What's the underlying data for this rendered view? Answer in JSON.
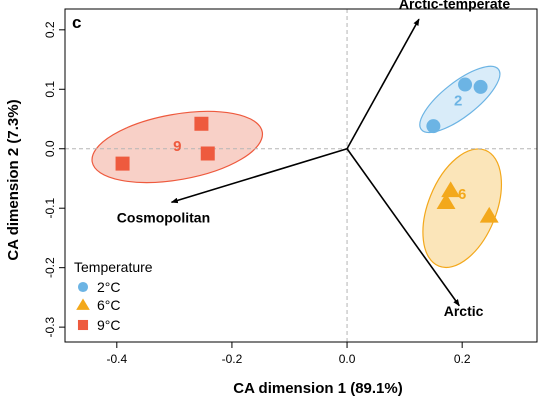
{
  "chart_data": {
    "type": "scatter",
    "panel_label": "c",
    "xlabel": "CA dimension 1 (89.1%)",
    "ylabel": "CA dimension 2 (7.3%)",
    "xlim": [
      -0.49,
      0.33
    ],
    "ylim": [
      -0.325,
      0.235
    ],
    "x_ticks": [
      -0.4,
      -0.2,
      0.0,
      0.2
    ],
    "x_tick_labels": [
      "-0.4",
      "-0.2",
      "0.0",
      "0.2"
    ],
    "y_ticks": [
      -0.3,
      -0.2,
      -0.1,
      0.0,
      0.1,
      0.2
    ],
    "y_tick_labels": [
      "-0.3",
      "-0.2",
      "-0.1",
      "0.0",
      "0.1",
      "0.2"
    ],
    "reference_lines": {
      "x": 0,
      "y": 0,
      "style": "dashed"
    },
    "series": [
      {
        "name": "2°C",
        "label": "2",
        "marker": "circle",
        "color": "#6CB4E4",
        "ellipse_fill": "#D9ECF9",
        "points": [
          {
            "x": 0.15,
            "y": 0.038
          },
          {
            "x": 0.205,
            "y": 0.108
          },
          {
            "x": 0.232,
            "y": 0.104
          }
        ],
        "ellipse": {
          "cx": 0.196,
          "cy": 0.083,
          "rx": 0.085,
          "ry": 0.029,
          "angle_deg": 38
        },
        "label_position": {
          "x": 0.193,
          "y": 0.079
        }
      },
      {
        "name": "6°C",
        "label": "6",
        "marker": "triangle",
        "color": "#F3A81B",
        "ellipse_fill": "#FBE5B9",
        "points": [
          {
            "x": 0.18,
            "y": -0.07
          },
          {
            "x": 0.172,
            "y": -0.09
          },
          {
            "x": 0.247,
            "y": -0.113
          }
        ],
        "ellipse": {
          "cx": 0.2,
          "cy": -0.1,
          "rx": 0.059,
          "ry": 0.105,
          "angle_deg": -22
        },
        "label_position": {
          "x": 0.2,
          "y": -0.078
        }
      },
      {
        "name": "9°C",
        "label": "9",
        "marker": "square",
        "color": "#EE5A3E",
        "ellipse_fill": "#F8D0C7",
        "points": [
          {
            "x": -0.39,
            "y": -0.025
          },
          {
            "x": -0.253,
            "y": 0.042
          },
          {
            "x": -0.242,
            "y": -0.008
          }
        ],
        "ellipse": {
          "cx": -0.295,
          "cy": 0.003,
          "rx": 0.15,
          "ry": 0.055,
          "angle_deg": 10
        },
        "label_position": {
          "x": -0.295,
          "y": 0.003
        }
      }
    ],
    "arrows": [
      {
        "label": "Arctic-temperate",
        "x": 0.125,
        "y": 0.218,
        "label_x": 0.09,
        "label_y": 0.236
      },
      {
        "label": "Cosmopolitan",
        "x": -0.305,
        "y": -0.09,
        "label_x": -0.4,
        "label_y": -0.124
      },
      {
        "label": "Arctic",
        "x": 0.195,
        "y": -0.264,
        "label_x": 0.168,
        "label_y": -0.281
      }
    ],
    "legend": {
      "title": "Temperature",
      "position": "bottom-left",
      "entries": [
        "2°C",
        "6°C",
        "9°C"
      ]
    }
  }
}
